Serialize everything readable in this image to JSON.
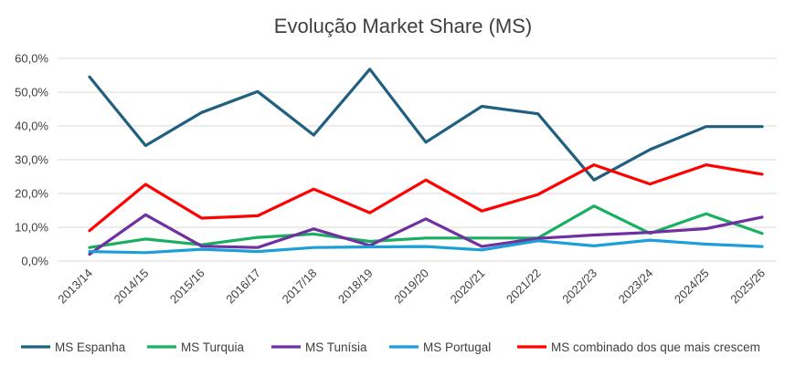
{
  "chart_data": {
    "type": "line",
    "title": "Evolução Market Share (MS)",
    "xlabel": "",
    "ylabel": "",
    "ylim": [
      0,
      60
    ],
    "yticks": [
      "0,0%",
      "10,0%",
      "20,0%",
      "30,0%",
      "40,0%",
      "50,0%",
      "60,0%"
    ],
    "grid": true,
    "legend_position": "bottom",
    "categories": [
      "2013/14",
      "2014/15",
      "2015/16",
      "2016/17",
      "2017/18",
      "2018/19",
      "2019/20",
      "2020/21",
      "2021/22",
      "2022/23",
      "2023/24",
      "2024/25",
      "2025/26"
    ],
    "series": [
      {
        "name": "MS Espanha",
        "color": "#1f5f7f",
        "values": [
          54.5,
          34.2,
          44.0,
          50.2,
          37.3,
          56.8,
          35.2,
          45.8,
          43.6,
          24.0,
          33.0,
          39.8,
          39.8
        ]
      },
      {
        "name": "MS Turquia",
        "color": "#18b060",
        "values": [
          4.0,
          6.5,
          4.8,
          7.0,
          8.0,
          5.8,
          6.8,
          6.8,
          6.8,
          16.3,
          8.2,
          14.0,
          8.2
        ]
      },
      {
        "name": "MS Tunísia",
        "color": "#7030a0",
        "values": [
          2.0,
          13.7,
          4.4,
          4.0,
          9.5,
          4.6,
          12.5,
          4.3,
          6.7,
          7.7,
          8.5,
          9.6,
          13.0
        ]
      },
      {
        "name": "MS Portugal",
        "color": "#1c9fd8",
        "values": [
          2.8,
          2.5,
          3.5,
          2.8,
          4.0,
          4.2,
          4.3,
          3.3,
          6.0,
          4.5,
          6.2,
          5.0,
          4.3
        ]
      },
      {
        "name": "MS combinado dos que mais crescem",
        "color": "#ff0000",
        "values": [
          9.0,
          22.7,
          12.7,
          13.4,
          21.3,
          14.3,
          24.0,
          14.8,
          19.7,
          28.5,
          22.8,
          28.5,
          25.7
        ]
      }
    ]
  }
}
